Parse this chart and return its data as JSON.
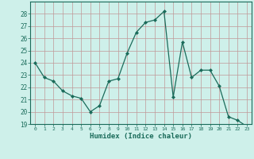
{
  "x": [
    0,
    1,
    2,
    3,
    4,
    5,
    6,
    7,
    8,
    9,
    10,
    11,
    12,
    13,
    14,
    15,
    16,
    17,
    18,
    19,
    20,
    21,
    22,
    23
  ],
  "y": [
    24,
    22.8,
    22.5,
    21.7,
    21.3,
    21.1,
    20.0,
    20.5,
    22.5,
    22.7,
    24.8,
    26.5,
    27.3,
    27.5,
    28.2,
    21.2,
    25.7,
    22.8,
    23.4,
    23.4,
    22.1,
    19.6,
    19.3,
    18.8
  ],
  "line_color": "#1a6b5a",
  "marker": "D",
  "marker_size": 2,
  "bg_color": "#cef0ea",
  "grid_color": "#c09898",
  "xlabel": "Humidex (Indice chaleur)",
  "ylim": [
    19,
    29
  ],
  "xlim": [
    -0.5,
    23.5
  ],
  "yticks": [
    19,
    20,
    21,
    22,
    23,
    24,
    25,
    26,
    27,
    28
  ],
  "xticks": [
    0,
    1,
    2,
    3,
    4,
    5,
    6,
    7,
    8,
    9,
    10,
    11,
    12,
    13,
    14,
    15,
    16,
    17,
    18,
    19,
    20,
    21,
    22,
    23
  ]
}
